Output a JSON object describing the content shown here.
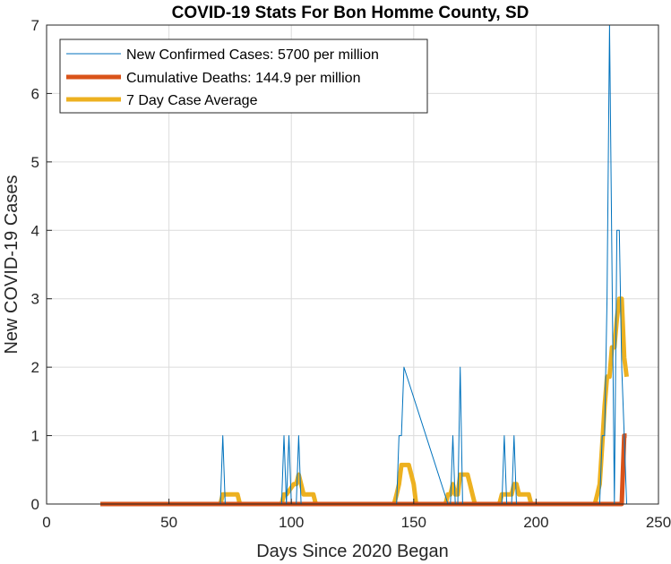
{
  "chart_data": {
    "type": "line",
    "title": "COVID-19 Stats For Bon Homme County, SD",
    "xlabel": "Days Since 2020 Began",
    "ylabel": "New COVID-19 Cases",
    "xlim": [
      0,
      250
    ],
    "ylim": [
      0,
      7
    ],
    "xticks": [
      "0",
      "50",
      "100",
      "150",
      "200",
      "250"
    ],
    "yticks": [
      "0",
      "1",
      "2",
      "3",
      "4",
      "5",
      "6",
      "7"
    ],
    "grid": true,
    "legend_position": "top-left",
    "colors": {
      "new_cases": "#0072BD",
      "deaths": "#D95319",
      "average": "#EDB120"
    },
    "series": [
      {
        "name": "New Confirmed Cases: 5700 per million",
        "x": [
          22,
          71,
          72,
          73,
          96,
          97,
          98,
          99,
          100,
          101,
          102,
          103,
          104,
          143,
          144,
          145,
          146,
          164,
          165,
          166,
          167,
          168,
          169,
          170,
          186,
          187,
          188,
          190,
          191,
          192,
          226,
          227,
          228,
          229,
          230,
          232,
          233,
          234,
          235,
          236,
          237
        ],
        "y": [
          0,
          0,
          1,
          0,
          0,
          1,
          0,
          1,
          0,
          0,
          0,
          1,
          0,
          0,
          1,
          1,
          2,
          0,
          0,
          1,
          0,
          0,
          2,
          0,
          0,
          1,
          0,
          0,
          1,
          0,
          0,
          1,
          1,
          3,
          7,
          0,
          4,
          4,
          2,
          1,
          0
        ]
      },
      {
        "name": "Cumulative Deaths: 144.9 per million",
        "x": [
          22,
          234,
          235,
          236,
          237
        ],
        "y": [
          0,
          0,
          0,
          1,
          1
        ]
      },
      {
        "name": "7 Day Case Average",
        "x": [
          22,
          71,
          72,
          73,
          78,
          79,
          96,
          97,
          98,
          101,
          102,
          103,
          104,
          105,
          106,
          109,
          110,
          142,
          143,
          144,
          145,
          146,
          147,
          148,
          149,
          150,
          151,
          163,
          164,
          165,
          166,
          167,
          168,
          169,
          172,
          173,
          174,
          175,
          185,
          186,
          187,
          188,
          189,
          190,
          191,
          192,
          193,
          194,
          195,
          196,
          197,
          198,
          224,
          225,
          226,
          227,
          228,
          229,
          230,
          231,
          232,
          233,
          234,
          235,
          236,
          237
        ],
        "y": [
          0,
          0,
          0.14,
          0.14,
          0.14,
          0,
          0,
          0.14,
          0.14,
          0.29,
          0.29,
          0.43,
          0.29,
          0.14,
          0.14,
          0.14,
          0,
          0,
          0.14,
          0.29,
          0.57,
          0.57,
          0.57,
          0.57,
          0.43,
          0.29,
          0,
          0,
          0.14,
          0.14,
          0.29,
          0.14,
          0.14,
          0.43,
          0.43,
          0.29,
          0.14,
          0,
          0,
          0.14,
          0.14,
          0.14,
          0.14,
          0.14,
          0.29,
          0.29,
          0.14,
          0.14,
          0.14,
          0.14,
          0.14,
          0,
          0,
          0.14,
          0.29,
          0.86,
          1.43,
          1.86,
          1.86,
          2.29,
          2.29,
          2.71,
          3,
          3,
          2.14,
          1.86
        ]
      }
    ]
  }
}
